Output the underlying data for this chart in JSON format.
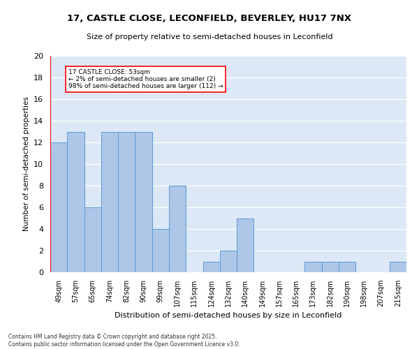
{
  "title_line1": "17, CASTLE CLOSE, LECONFIELD, BEVERLEY, HU17 7NX",
  "title_line2": "Size of property relative to semi-detached houses in Leconfield",
  "xlabel": "Distribution of semi-detached houses by size in Leconfield",
  "ylabel_text": "Number of semi-detached properties",
  "categories": [
    "49sqm",
    "57sqm",
    "65sqm",
    "74sqm",
    "82sqm",
    "90sqm",
    "99sqm",
    "107sqm",
    "115sqm",
    "124sqm",
    "132sqm",
    "140sqm",
    "149sqm",
    "157sqm",
    "165sqm",
    "173sqm",
    "182sqm",
    "190sqm",
    "198sqm",
    "207sqm",
    "215sqm"
  ],
  "values": [
    12,
    13,
    6,
    13,
    13,
    13,
    4,
    8,
    0,
    1,
    2,
    5,
    0,
    0,
    0,
    1,
    1,
    1,
    0,
    0,
    1
  ],
  "bar_color": "#aec6e8",
  "bar_edge_color": "#5b9bd5",
  "ylim": [
    0,
    20
  ],
  "yticks": [
    0,
    2,
    4,
    6,
    8,
    10,
    12,
    14,
    16,
    18,
    20
  ],
  "background_color": "#dce8f5",
  "ann_title": "17 CASTLE CLOSE: 53sqm",
  "ann_line1": "← 2% of semi-detached houses are smaller (2)",
  "ann_line2": "98% of semi-detached houses are larger (112) →",
  "footer_line1": "Contains HM Land Registry data © Crown copyright and database right 2025.",
  "footer_line2": "Contains public sector information licensed under the Open Government Licence v3.0."
}
